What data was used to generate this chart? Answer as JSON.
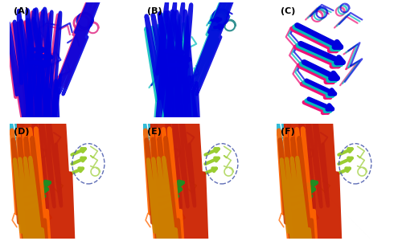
{
  "panels": [
    "A",
    "B",
    "C",
    "D",
    "E",
    "F"
  ],
  "nrows": 2,
  "ncols": 3,
  "fig_width": 5.0,
  "fig_height": 3.0,
  "dpi": 100,
  "background_color": "#ffffff",
  "label_fontsize": 8,
  "label_fontweight": "bold",
  "panel_border_color": "#cccccc",
  "panel_A": {
    "helix_color1": "#0000ee",
    "helix_color2": "#ee1177",
    "strand_color1": "#0000cc",
    "strand_color2": "#cc0055",
    "loop_color1": "#3333ff",
    "loop_color2": "#ff44aa"
  },
  "panel_B": {
    "helix_color1": "#0000ee",
    "helix_color2": "#00cccc",
    "strand_color1": "#0000cc",
    "strand_color2": "#009999",
    "loop_color1": "#3333ff",
    "loop_color2": "#00aaaa"
  },
  "panel_C": {
    "colors": [
      "#0000ee",
      "#00cccc",
      "#ee1177"
    ]
  },
  "panel_DEF": {
    "blue": "#0000ee",
    "cyan": "#00aacc",
    "green": "#228B22",
    "yellow_green": "#9acd32",
    "red": "#cc2200",
    "orange": "#ff6600",
    "dark_orange": "#cc4400",
    "gold": "#cc8800"
  }
}
